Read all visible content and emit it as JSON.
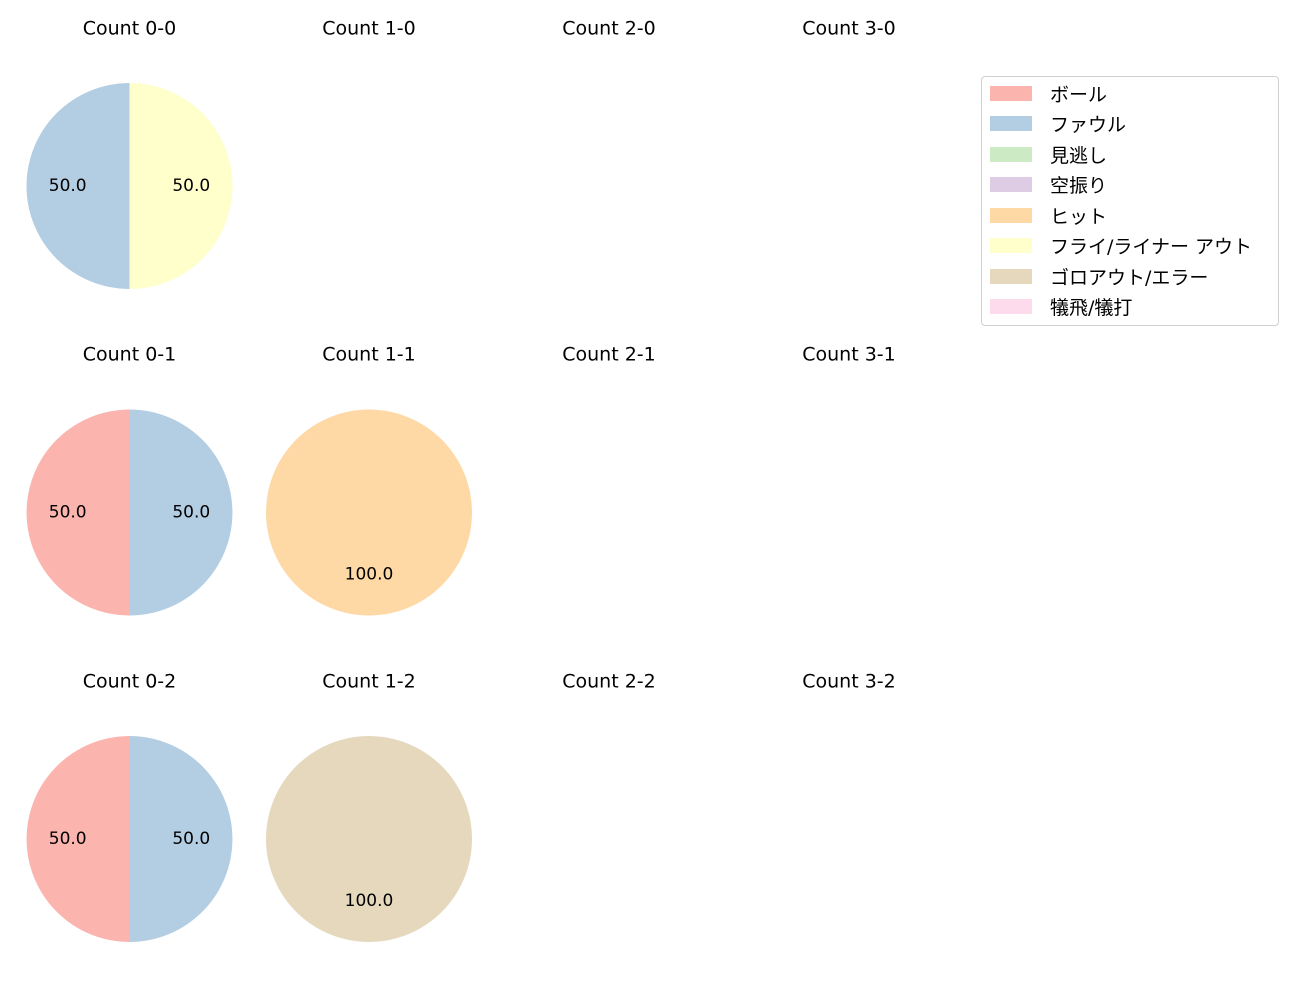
{
  "chart_data": {
    "type": "pie",
    "legend_position": "top-right",
    "categories": [
      {
        "label": "ボール",
        "color": "#fbb4ae"
      },
      {
        "label": "ファウル",
        "color": "#b3cde3"
      },
      {
        "label": "見逃し",
        "color": "#ccebc5"
      },
      {
        "label": "空振り",
        "color": "#decbe4"
      },
      {
        "label": "ヒット",
        "color": "#fed9a6"
      },
      {
        "label": "フライ/ライナー アウト",
        "color": "#ffffcc"
      },
      {
        "label": "ゴロアウト/エラー",
        "color": "#e5d8bd"
      },
      {
        "label": "犠飛/犠打",
        "color": "#fddaec"
      }
    ],
    "subplots": [
      {
        "title": "Count 0-0",
        "slices": [
          {
            "category": "ファウル",
            "value": 50.0,
            "label": "50.0"
          },
          {
            "category": "フライ/ライナー アウト",
            "value": 50.0,
            "label": "50.0"
          }
        ]
      },
      {
        "title": "Count 1-0",
        "slices": []
      },
      {
        "title": "Count 2-0",
        "slices": []
      },
      {
        "title": "Count 3-0",
        "slices": []
      },
      {
        "title": "Count 0-1",
        "slices": [
          {
            "category": "ボール",
            "value": 50.0,
            "label": "50.0"
          },
          {
            "category": "ファウル",
            "value": 50.0,
            "label": "50.0"
          }
        ]
      },
      {
        "title": "Count 1-1",
        "slices": [
          {
            "category": "ヒット",
            "value": 100.0,
            "label": "100.0"
          }
        ]
      },
      {
        "title": "Count 2-1",
        "slices": []
      },
      {
        "title": "Count 3-1",
        "slices": []
      },
      {
        "title": "Count 0-2",
        "slices": [
          {
            "category": "ボール",
            "value": 50.0,
            "label": "50.0"
          },
          {
            "category": "ファウル",
            "value": 50.0,
            "label": "50.0"
          }
        ]
      },
      {
        "title": "Count 1-2",
        "slices": [
          {
            "category": "ゴロアウト/エラー",
            "value": 100.0,
            "label": "100.0"
          }
        ]
      },
      {
        "title": "Count 2-2",
        "slices": []
      },
      {
        "title": "Count 3-2",
        "slices": []
      }
    ]
  }
}
